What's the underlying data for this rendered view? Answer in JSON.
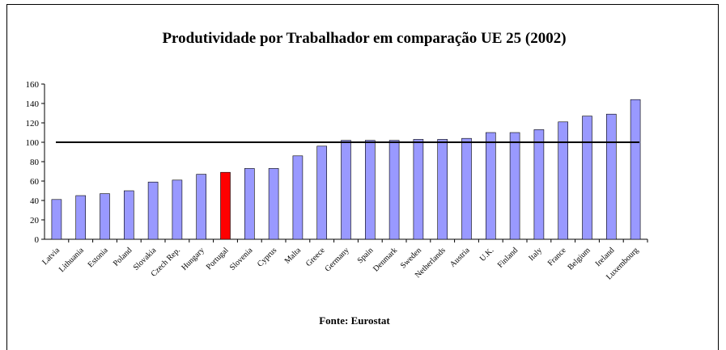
{
  "chart_data": {
    "type": "bar",
    "title": "Produtividade por Trabalhador em comparação UE 25 (2002)",
    "footer": "Fonte: Eurostat",
    "categories": [
      "Latvia",
      "Lithuania",
      "Estonia",
      "Poland",
      "Slovakia",
      "Czech Rep.",
      "Hungary",
      "Portugal",
      "Slovenia",
      "Cyprus",
      "Malta",
      "Greece",
      "Germany",
      "Spain",
      "Denmark",
      "Sweden",
      "Netherlands",
      "Austria",
      "U.K.",
      "Finland",
      "Italy",
      "France",
      "Belgium",
      "Ireland",
      "Luxembourg"
    ],
    "values": [
      41,
      45,
      47,
      50,
      59,
      61,
      67,
      69,
      73,
      73,
      86,
      96,
      102,
      102,
      102,
      103,
      103,
      104,
      110,
      110,
      113,
      121,
      127,
      129,
      144
    ],
    "colors": [
      "#9999ff",
      "#9999ff",
      "#9999ff",
      "#9999ff",
      "#9999ff",
      "#9999ff",
      "#9999ff",
      "#ff0000",
      "#9999ff",
      "#9999ff",
      "#9999ff",
      "#9999ff",
      "#9999ff",
      "#9999ff",
      "#9999ff",
      "#9999ff",
      "#9999ff",
      "#9999ff",
      "#9999ff",
      "#9999ff",
      "#9999ff",
      "#9999ff",
      "#9999ff",
      "#9999ff",
      "#9999ff"
    ],
    "reference_line": 100,
    "ylim": [
      0,
      160
    ],
    "yticks": [
      0,
      20,
      40,
      60,
      80,
      100,
      120,
      140,
      160
    ],
    "grid": false
  }
}
